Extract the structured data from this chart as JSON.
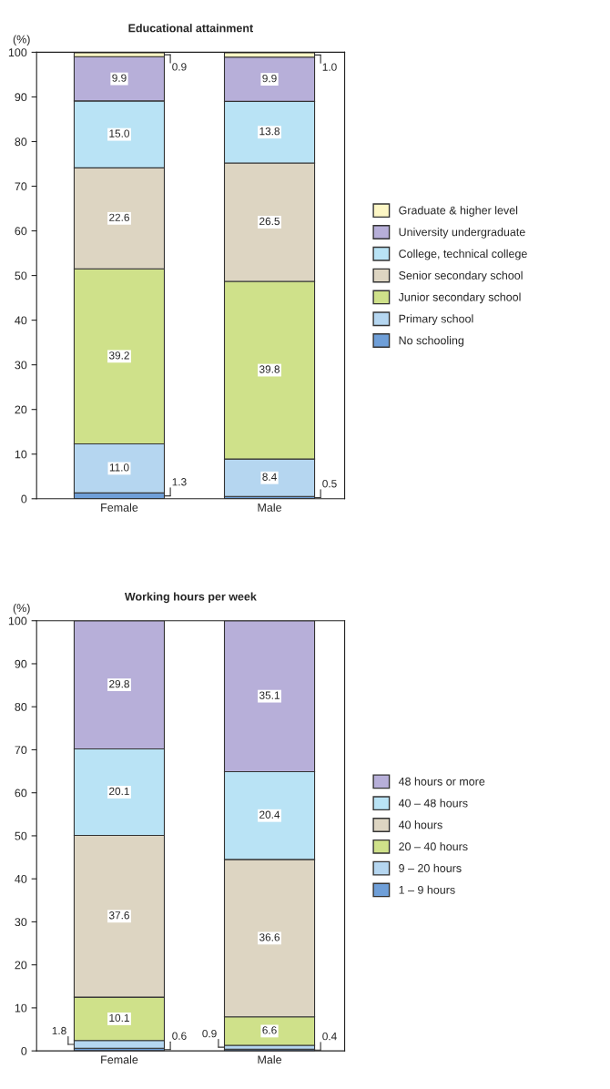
{
  "chart_data": [
    {
      "type": "bar",
      "stacked": true,
      "title": "Educational attainment",
      "ylabel": "(%)",
      "categories": [
        "Female",
        "Male"
      ],
      "ylim": [
        0,
        100
      ],
      "yticks": [
        0,
        10,
        20,
        30,
        40,
        50,
        60,
        70,
        80,
        90,
        100
      ],
      "legend": "right",
      "grid": false,
      "series": [
        {
          "name": "No schooling",
          "color": "#6f9fd8",
          "values": [
            1.3,
            0.5
          ],
          "value_labels": [
            "1.3",
            "0.5"
          ]
        },
        {
          "name": "Primary school",
          "color": "#b5d6f0",
          "values": [
            11.0,
            8.4
          ],
          "value_labels": [
            "11.0",
            "8.4"
          ]
        },
        {
          "name": "Junior secondary school",
          "color": "#cfe18a",
          "values": [
            39.2,
            39.8
          ],
          "value_labels": [
            "39.2",
            "39.8"
          ]
        },
        {
          "name": "Senior secondary school",
          "color": "#ddd5c2",
          "values": [
            22.6,
            26.5
          ],
          "value_labels": [
            "22.6",
            "26.5"
          ]
        },
        {
          "name": "College, technical college",
          "color": "#b9e3f5",
          "values": [
            15.0,
            13.8
          ],
          "value_labels": [
            "15.0",
            "13.8"
          ]
        },
        {
          "name": "University undergraduate",
          "color": "#b7afd9",
          "values": [
            9.9,
            9.9
          ],
          "value_labels": [
            "9.9",
            "9.9"
          ]
        },
        {
          "name": "Graduate & higher level",
          "color": "#fdf7c5",
          "values": [
            0.9,
            1.0
          ],
          "value_labels": [
            "0.9",
            "1.0"
          ]
        }
      ]
    },
    {
      "type": "bar",
      "stacked": true,
      "title": "Working hours per week",
      "ylabel": "(%)",
      "categories": [
        "Female",
        "Male"
      ],
      "ylim": [
        0,
        100
      ],
      "yticks": [
        0,
        10,
        20,
        30,
        40,
        50,
        60,
        70,
        80,
        90,
        100
      ],
      "legend": "right",
      "grid": false,
      "series": [
        {
          "name": "1 – 9 hours",
          "color": "#6f9fd8",
          "values": [
            0.6,
            0.4
          ],
          "value_labels": [
            "0.6",
            "0.4"
          ]
        },
        {
          "name": "9 – 20 hours",
          "color": "#b5d6f0",
          "values": [
            1.8,
            0.9
          ],
          "value_labels": [
            "1.8",
            "0.9"
          ]
        },
        {
          "name": "20 – 40 hours",
          "color": "#cfe18a",
          "values": [
            10.1,
            6.6
          ],
          "value_labels": [
            "10.1",
            "6.6"
          ]
        },
        {
          "name": "40 hours",
          "color": "#ddd5c2",
          "values": [
            37.6,
            36.6
          ],
          "value_labels": [
            "37.6",
            "36.6"
          ]
        },
        {
          "name": "40 – 48 hours",
          "color": "#b9e3f5",
          "values": [
            20.1,
            20.4
          ],
          "value_labels": [
            "20.1",
            "20.4"
          ]
        },
        {
          "name": "48 hours or more",
          "color": "#b7afd9",
          "values": [
            29.8,
            35.1
          ],
          "value_labels": [
            "29.8",
            "35.1"
          ]
        }
      ]
    }
  ]
}
